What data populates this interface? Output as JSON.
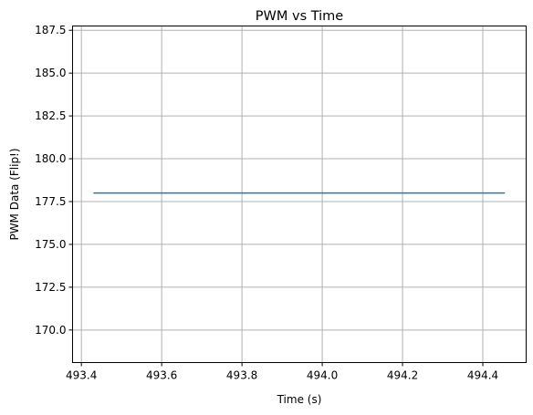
{
  "chart_data": {
    "type": "line",
    "title": "PWM vs Time",
    "xlabel": "Time (s)",
    "ylabel": "PWM Data (Flip!)",
    "xlim": [
      493.378,
      494.508
    ],
    "ylim": [
      168.1,
      187.75
    ],
    "xticks": [
      493.4,
      493.6,
      493.8,
      494.0,
      494.2,
      494.4
    ],
    "xtick_labels": [
      "493.4",
      "493.6",
      "493.8",
      "494.0",
      "494.2",
      "494.4"
    ],
    "yticks": [
      170.0,
      172.5,
      175.0,
      177.5,
      180.0,
      182.5,
      185.0,
      187.5
    ],
    "ytick_labels": [
      "170.0",
      "172.5",
      "175.0",
      "177.5",
      "180.0",
      "182.5",
      "185.0",
      "187.5"
    ],
    "grid": true,
    "series": [
      {
        "color": "#1f77b4",
        "x": [
          493.43,
          494.455
        ],
        "y": [
          178.0,
          178.0
        ]
      }
    ]
  }
}
